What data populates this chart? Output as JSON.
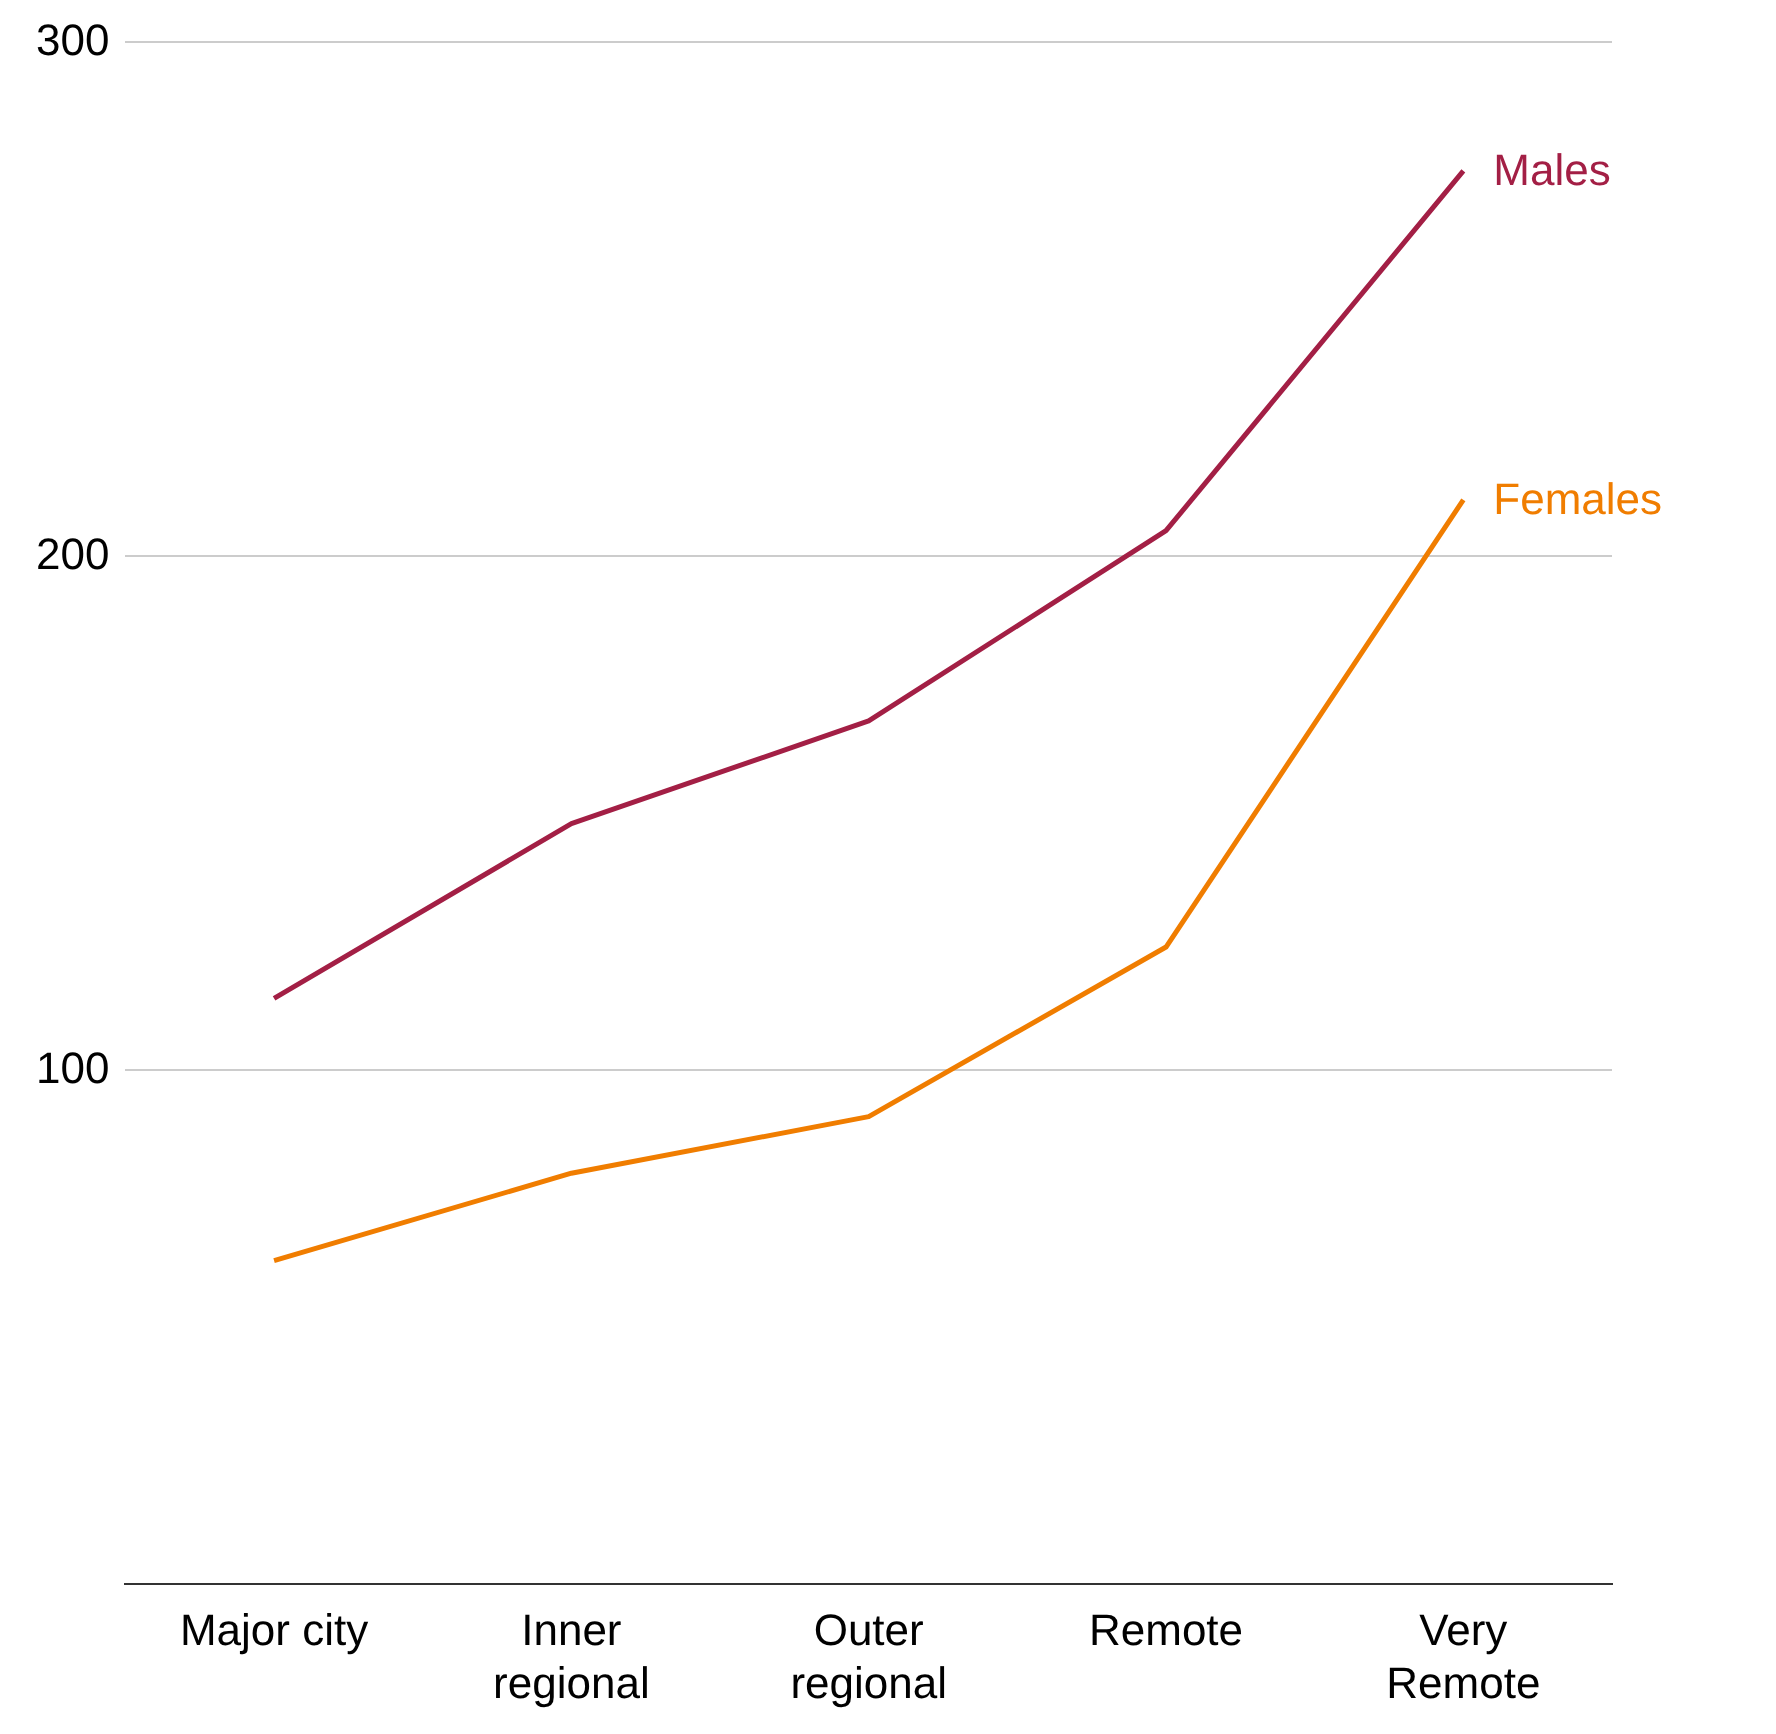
{
  "chart_data": {
    "type": "line",
    "categories": [
      "Major city",
      "Inner regional",
      "Outer regional",
      "Remote",
      "Very Remote"
    ],
    "series": [
      {
        "name": "Males",
        "color": "#a31f45",
        "values": [
          114,
          148,
          168,
          205,
          275
        ]
      },
      {
        "name": "Females",
        "color": "#f07d00",
        "values": [
          63,
          80,
          91,
          124,
          211
        ]
      }
    ],
    "ylim": [
      0,
      300
    ],
    "yticks": [
      100,
      200,
      300
    ],
    "grid": "y",
    "legend": false,
    "marker": "none",
    "line_style": "solid"
  }
}
